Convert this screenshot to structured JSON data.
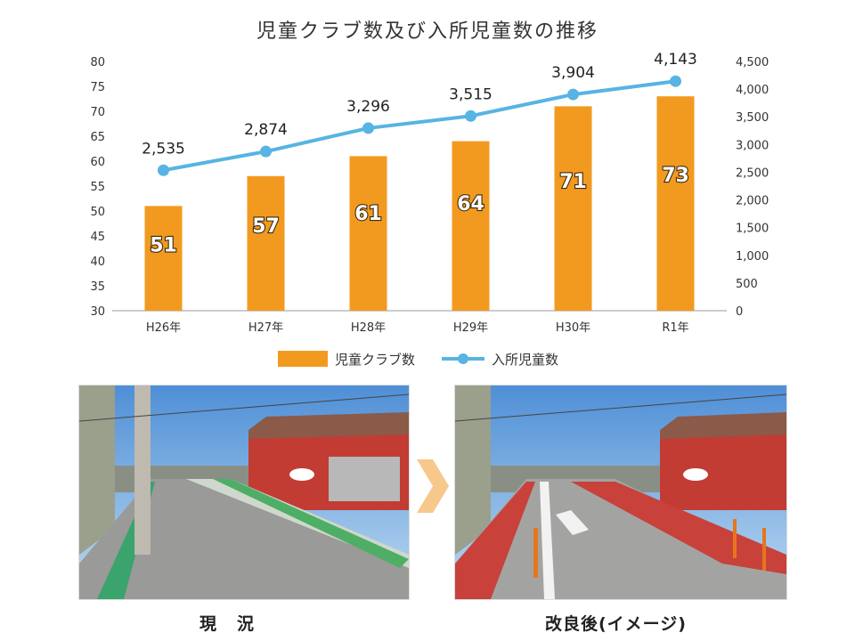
{
  "chart_data": {
    "type": "bar+line",
    "title": "児童クラブ数及び入所児童数の推移",
    "categories": [
      "H26年",
      "H27年",
      "H28年",
      "H29年",
      "H30年",
      "R1年"
    ],
    "series": [
      {
        "name": "児童クラブ数",
        "type": "bar",
        "axis": "left",
        "values": [
          51,
          57,
          61,
          64,
          71,
          73
        ],
        "labels": [
          "51",
          "57",
          "61",
          "64",
          "71",
          "73"
        ]
      },
      {
        "name": "入所児童数",
        "type": "line",
        "axis": "right",
        "values": [
          2535,
          2874,
          3296,
          3515,
          3904,
          4143
        ],
        "labels": [
          "2,535",
          "2,874",
          "3,296",
          "3,515",
          "3,904",
          "4,143"
        ]
      }
    ],
    "y_left": {
      "range": [
        30,
        80
      ],
      "ticks": [
        "30",
        "35",
        "40",
        "45",
        "50",
        "55",
        "60",
        "65",
        "70",
        "75",
        "80"
      ]
    },
    "y_right": {
      "range": [
        0,
        4500
      ],
      "ticks": [
        "0",
        "500",
        "1,000",
        "1,500",
        "2,000",
        "2,500",
        "3,000",
        "3,500",
        "4,000",
        "4,500"
      ]
    },
    "legend": "bottom-center",
    "grid": false,
    "colors": {
      "bar": "#f29a1f",
      "line": "#57b4e3"
    }
  },
  "photos": {
    "current_caption": [
      "現",
      "況"
    ],
    "improved_caption": "改良後(イメージ)"
  },
  "colors": {
    "bike_lane": "#c8413b",
    "arrow": "#f6c88c"
  }
}
